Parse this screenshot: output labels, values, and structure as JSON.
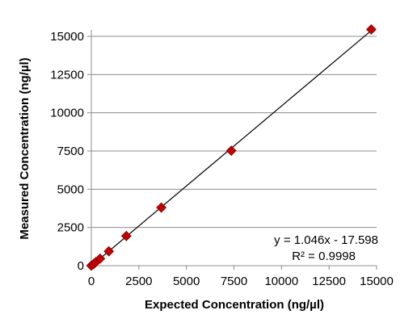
{
  "chart_data": {
    "type": "scatter",
    "title": "",
    "xlabel": "Expected Concentration (ng/µl)",
    "ylabel": "Measured Concentration (ng/µl)",
    "xlim": [
      0,
      15000
    ],
    "ylim": [
      0,
      15000
    ],
    "xticks": [
      0,
      2500,
      5000,
      7500,
      10000,
      12500,
      15000
    ],
    "yticks": [
      0,
      2500,
      5000,
      7500,
      10000,
      12500,
      15000
    ],
    "xtick_labels": [
      "0",
      "2500",
      "5000",
      "7500",
      "10000",
      "12500",
      "15000"
    ],
    "ytick_labels": [
      "0",
      "2500",
      "5000",
      "7500",
      "10000",
      "12500",
      "15000"
    ],
    "grid": {
      "horizontal": true,
      "vertical": false
    },
    "legend": "none",
    "series": [
      {
        "marker": "diamond",
        "color": "#c00000",
        "x": [
          0,
          115,
          230,
          460,
          920,
          1840,
          3680,
          7360,
          14720
        ],
        "y": [
          0,
          100,
          230,
          460,
          940,
          1940,
          3800,
          7520,
          15450
        ]
      }
    ],
    "trendline": {
      "type": "linear",
      "slope": 1.046,
      "intercept": -17.598,
      "color": "#000000",
      "x_range": [
        0,
        14720
      ]
    },
    "annotations": {
      "equation": "y = 1.046x - 17.598",
      "r_squared": "R² = 0.9998"
    }
  }
}
